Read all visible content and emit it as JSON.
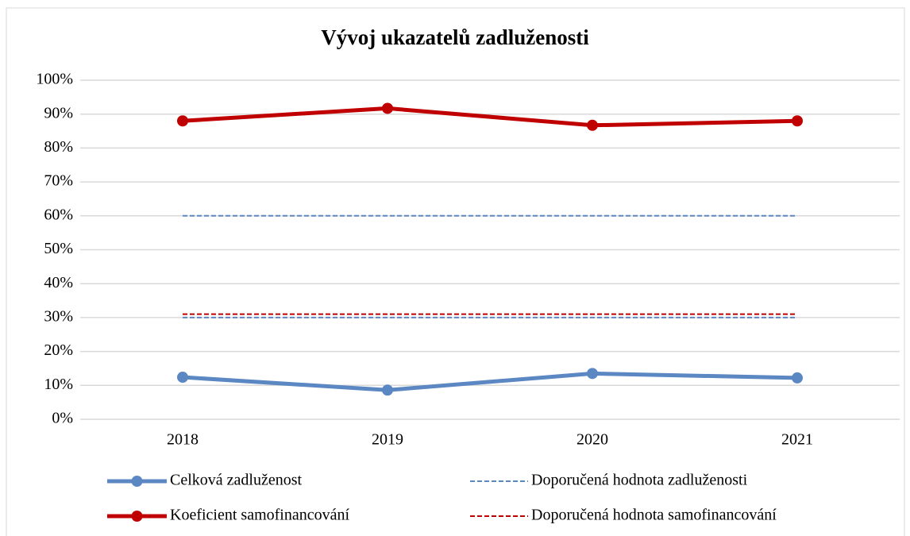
{
  "chart_data": {
    "type": "line",
    "title": "Vývoj ukazatelů zadluženosti",
    "categories": [
      "2018",
      "2019",
      "2020",
      "2021"
    ],
    "series": [
      {
        "name": "Celková zadluženost",
        "color": "#5b87c3",
        "dash": false,
        "values": [
          12.4,
          8.6,
          13.5,
          12.2
        ]
      },
      {
        "name": "Koeficient samofinancování",
        "color": "#c00000",
        "dash": false,
        "values": [
          88,
          91.7,
          86.7,
          88
        ]
      },
      {
        "name": "Doporučená hodnota zadluženosti",
        "color": "#5b87c3",
        "dash": true,
        "values": [
          60,
          60,
          60,
          60
        ]
      },
      {
        "color": "#5b87c3",
        "dash": true,
        "values": [
          30,
          30,
          30,
          30
        ]
      },
      {
        "name": "Doporučená hodnota samofinancování",
        "color": "#c00000",
        "dash": true,
        "values": [
          31,
          31,
          31,
          31
        ]
      }
    ],
    "ylim": [
      0,
      100
    ],
    "yticks": [
      {
        "value": 0,
        "label": "0%"
      },
      {
        "value": 10,
        "label": "10%"
      },
      {
        "value": 20,
        "label": "20%"
      },
      {
        "value": 30,
        "label": "30%"
      },
      {
        "value": 40,
        "label": "40%"
      },
      {
        "value": 50,
        "label": "50%"
      },
      {
        "value": 60,
        "label": "60%"
      },
      {
        "value": 70,
        "label": "70%"
      },
      {
        "value": 80,
        "label": "80%"
      },
      {
        "value": 90,
        "label": "90%"
      },
      {
        "value": 100,
        "label": "100%"
      }
    ],
    "grid": true
  }
}
